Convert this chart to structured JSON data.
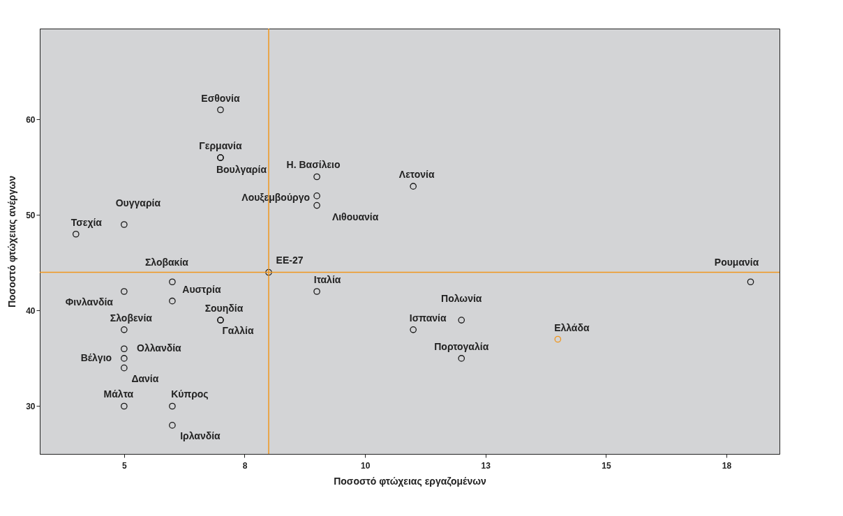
{
  "chart_data": {
    "type": "scatter",
    "xlabel": "Ποσοστό φτώχειας εργαζομένων",
    "ylabel": "Ποσοστό φτώχειας ανέργων",
    "x": [
      7,
      7,
      7,
      9,
      11,
      9,
      9,
      5,
      4,
      8,
      18,
      6,
      9,
      5,
      6,
      7,
      7,
      12,
      5,
      11,
      14,
      5,
      12,
      5,
      5,
      5,
      6,
      6
    ],
    "values": [
      61,
      56,
      56,
      54,
      53,
      52,
      51,
      49,
      48,
      44,
      43,
      43,
      42,
      42,
      41,
      39,
      39,
      39,
      38,
      38,
      37,
      36,
      35,
      35,
      34,
      30,
      30,
      28
    ],
    "colors": [
      "#1a1a1a",
      "#1a1a1a",
      "#1a1a1a",
      "#1a1a1a",
      "#1a1a1a",
      "#1a1a1a",
      "#1a1a1a",
      "#1a1a1a",
      "#1a1a1a",
      "#1a1a1a",
      "#1a1a1a",
      "#1a1a1a",
      "#1a1a1a",
      "#1a1a1a",
      "#1a1a1a",
      "#1a1a1a",
      "#1a1a1a",
      "#1a1a1a",
      "#1a1a1a",
      "#1a1a1a",
      "#f0961e",
      "#1a1a1a",
      "#1a1a1a",
      "#1a1a1a",
      "#1a1a1a",
      "#1a1a1a",
      "#1a1a1a",
      "#1a1a1a"
    ],
    "marker": "circle",
    "annotations": [
      {
        "text": "Εσθονία",
        "x": 7,
        "y": 61
      },
      {
        "text": "Γερμανία",
        "x": 7,
        "y": 56
      },
      {
        "text": "Βουλγαρία",
        "x": 7,
        "y": 56
      },
      {
        "text": "Η. Βασίλειο",
        "x": 9,
        "y": 54
      },
      {
        "text": "Λετονία",
        "x": 11,
        "y": 53
      },
      {
        "text": "Λουξεμβούργο",
        "x": 9,
        "y": 52
      },
      {
        "text": "Λιθουανία",
        "x": 9,
        "y": 51
      },
      {
        "text": "Ουγγαρία",
        "x": 5,
        "y": 49
      },
      {
        "text": "Τσεχία",
        "x": 4,
        "y": 48
      },
      {
        "text": "ΕΕ-27",
        "x": 8,
        "y": 44
      },
      {
        "text": "Ρουμανία",
        "x": 18,
        "y": 43
      },
      {
        "text": "Σλοβακία",
        "x": 6,
        "y": 43
      },
      {
        "text": "Ιταλία",
        "x": 9,
        "y": 42
      },
      {
        "text": "Φινλανδία",
        "x": 5,
        "y": 42
      },
      {
        "text": "Αυστρία",
        "x": 6,
        "y": 41
      },
      {
        "text": "Σουηδία",
        "x": 7,
        "y": 39
      },
      {
        "text": "Γαλλία",
        "x": 7,
        "y": 39
      },
      {
        "text": "Πολωνία",
        "x": 12,
        "y": 39
      },
      {
        "text": "Σλοβενία",
        "x": 5,
        "y": 38
      },
      {
        "text": "Ισπανία",
        "x": 11,
        "y": 38
      },
      {
        "text": "Ελλάδα",
        "x": 14,
        "y": 37
      },
      {
        "text": "Ολλανδία",
        "x": 5,
        "y": 36
      },
      {
        "text": "Πορτογαλία",
        "x": 12,
        "y": 35
      },
      {
        "text": "Βέλγιο",
        "x": 5,
        "y": 35
      },
      {
        "text": "Δανία",
        "x": 5,
        "y": 34
      },
      {
        "text": "Μάλτα",
        "x": 5,
        "y": 30
      },
      {
        "text": "Κύπρος",
        "x": 6,
        "y": 30
      },
      {
        "text": "Ιρλανδία",
        "x": 6,
        "y": 28
      }
    ],
    "ref_lines": [
      {
        "axis": "x",
        "value": 8,
        "color": "#f0961e"
      },
      {
        "axis": "y",
        "value": 44,
        "color": "#f0961e"
      }
    ],
    "xlim": [
      3.25,
      18.6
    ],
    "xticks": [
      5,
      {
        "value": 7.5,
        "label": "8"
      },
      10,
      {
        "value": 12.5,
        "label": "13"
      },
      15,
      {
        "value": 17.5,
        "label": "18"
      }
    ],
    "ylim": [
      25,
      69.5
    ],
    "yticks": [
      30,
      40,
      50,
      60
    ],
    "grid": false
  }
}
